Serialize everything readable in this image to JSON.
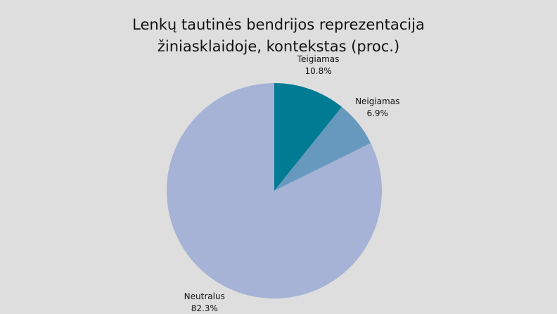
{
  "chart_data": {
    "type": "pie",
    "title": "Lenkų tautinės bendrijos reprezentacija žiniasklaidoje, kontekstas (proc.)",
    "categories": [
      "Teigiamas",
      "Neigiamas",
      "Neutralus"
    ],
    "values": [
      10.8,
      6.9,
      82.3
    ],
    "value_labels": [
      "10.8%",
      "6.9%",
      "82.3%"
    ],
    "colors": [
      "#007b94",
      "#6699bd",
      "#a6b3d6"
    ]
  }
}
